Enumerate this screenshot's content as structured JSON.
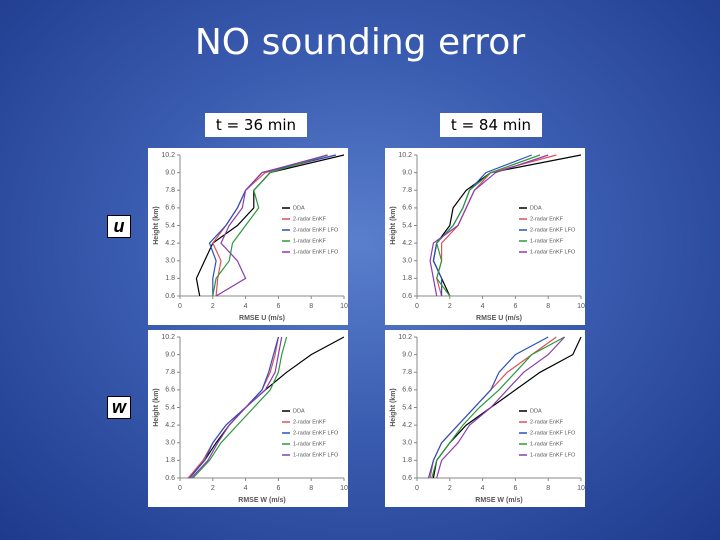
{
  "title": "NO sounding error",
  "column_labels": [
    "t = 36 min",
    "t = 84 min"
  ],
  "row_labels": [
    "u",
    "w"
  ],
  "chart_data": [
    {
      "type": "line",
      "xlabel": "RMSE U (m/s)",
      "ylabel": "Height (km)",
      "legend": "center right",
      "y": [
        0.6,
        1.8,
        3.0,
        4.2,
        5.4,
        6.6,
        7.8,
        9.0,
        10.2
      ],
      "xlim": [
        0,
        10
      ],
      "xticks": [
        0,
        2,
        4,
        6,
        8,
        10
      ],
      "ylim": [
        0.6,
        10.2
      ],
      "yticks": [
        0.6,
        1.8,
        {
          "value": 3,
          "label": "3.0"
        },
        4.2,
        5.4,
        6.6,
        7.8,
        {
          "value": 9,
          "label": "9.0"
        },
        10.2
      ],
      "series": [
        {
          "name": "DDA",
          "color": "#000000",
          "values": [
            1.2,
            1.0,
            1.5,
            2.0,
            3.5,
            4.5,
            4.5,
            5.5,
            10
          ]
        },
        {
          "name": "2-radar EnKF",
          "color": "#e0505a",
          "values": [
            2.2,
            2.3,
            2.5,
            2.0,
            2.8,
            3.5,
            4.0,
            5.2,
            9.5
          ]
        },
        {
          "name": "2-radar EnKF LFO",
          "color": "#2a50c0",
          "values": [
            2.0,
            2.0,
            2.2,
            1.8,
            2.8,
            3.5,
            4.0,
            5.0,
            9.5
          ]
        },
        {
          "name": "1-radar EnKF",
          "color": "#2a9a3a",
          "values": [
            2.0,
            2.2,
            3.0,
            3.2,
            4.0,
            4.8,
            4.5,
            5.5,
            9.0
          ]
        },
        {
          "name": "1-radar EnKF LFO",
          "color": "#8a3ab0",
          "values": [
            2.2,
            4.0,
            3.5,
            2.5,
            3.0,
            3.8,
            4.0,
            5.0,
            9.0
          ]
        }
      ]
    },
    {
      "type": "line",
      "xlabel": "RMSE U (m/s)",
      "ylabel": "Height (km)",
      "legend": "center right",
      "y": [
        0.6,
        1.8,
        3.0,
        4.2,
        5.4,
        6.6,
        7.8,
        9.0,
        10.2
      ],
      "xlim": [
        0,
        10
      ],
      "xticks": [
        0,
        2,
        4,
        6,
        8,
        10
      ],
      "ylim": [
        0.6,
        10.2
      ],
      "yticks": [
        0.6,
        1.8,
        {
          "value": 3,
          "label": "3.0"
        },
        4.2,
        5.4,
        6.6,
        7.8,
        {
          "value": 9,
          "label": "9.0"
        },
        10.2
      ],
      "series": [
        {
          "name": "DDA",
          "color": "#000000",
          "values": [
            2.0,
            1.5,
            1.0,
            1.2,
            2.0,
            2.2,
            3.0,
            4.5,
            10
          ]
        },
        {
          "name": "2-radar EnKF",
          "color": "#e0505a",
          "values": [
            1.5,
            1.2,
            1.5,
            1.5,
            2.5,
            3.0,
            3.5,
            4.5,
            8.5
          ]
        },
        {
          "name": "2-radar EnKF LFO",
          "color": "#2a50c0",
          "values": [
            1.5,
            1.5,
            1.0,
            1.2,
            2.2,
            2.8,
            3.2,
            4.2,
            7.0
          ]
        },
        {
          "name": "1-radar EnKF",
          "color": "#2a9a3a",
          "values": [
            2.0,
            1.2,
            1.5,
            1.2,
            2.2,
            2.8,
            3.2,
            4.5,
            7.5
          ]
        },
        {
          "name": "1-radar EnKF LFO",
          "color": "#8a3ab0",
          "values": [
            1.2,
            1.0,
            0.8,
            1.0,
            2.5,
            3.0,
            3.5,
            4.8,
            8.0
          ]
        }
      ]
    },
    {
      "type": "line",
      "xlabel": "RMSE W (m/s)",
      "ylabel": "Height (km)",
      "legend": "lower right",
      "y": [
        0.6,
        1.8,
        3.0,
        4.2,
        5.4,
        6.6,
        7.8,
        9.0,
        10.2
      ],
      "xlim": [
        0,
        10
      ],
      "xticks": [
        0,
        2,
        4,
        6,
        8,
        10
      ],
      "ylim": [
        0.6,
        10.2
      ],
      "yticks": [
        0.6,
        1.8,
        {
          "value": 3,
          "label": "3.0"
        },
        4.2,
        5.4,
        6.6,
        7.8,
        {
          "value": 9,
          "label": "9.0"
        },
        10.2
      ],
      "series": [
        {
          "name": "DDA",
          "color": "#000000",
          "values": [
            0.5,
            1.5,
            2.2,
            3.0,
            4.0,
            5.2,
            6.5,
            8.0,
            10
          ]
        },
        {
          "name": "2-radar EnKF",
          "color": "#e0505a",
          "values": [
            0.5,
            1.4,
            2.0,
            2.8,
            4.0,
            5.0,
            5.5,
            5.8,
            6.0
          ]
        },
        {
          "name": "2-radar EnKF LFO",
          "color": "#2a50c0",
          "values": [
            0.6,
            1.5,
            2.0,
            2.8,
            4.0,
            5.0,
            5.4,
            5.7,
            6.0
          ]
        },
        {
          "name": "1-radar EnKF",
          "color": "#2a9a3a",
          "values": [
            0.8,
            1.8,
            2.5,
            3.5,
            4.5,
            5.5,
            6.0,
            6.2,
            6.5
          ]
        },
        {
          "name": "1-radar EnKF LFO",
          "color": "#8a3ab0",
          "values": [
            0.7,
            1.7,
            2.3,
            3.0,
            4.0,
            5.2,
            5.8,
            6.0,
            6.2
          ]
        }
      ]
    },
    {
      "type": "line",
      "xlabel": "RMSE W (m/s)",
      "ylabel": "Height (km)",
      "legend": "lower right",
      "y": [
        0.6,
        1.8,
        3.0,
        4.2,
        5.4,
        6.6,
        7.8,
        9.0,
        10.2
      ],
      "xlim": [
        0,
        10
      ],
      "xticks": [
        0,
        2,
        4,
        6,
        8,
        10
      ],
      "ylim": [
        0.6,
        10.2
      ],
      "yticks": [
        0.6,
        1.8,
        {
          "value": 3,
          "label": "3.0"
        },
        4.2,
        5.4,
        6.6,
        7.8,
        {
          "value": 9,
          "label": "9.0"
        },
        10.2
      ],
      "series": [
        {
          "name": "DDA",
          "color": "#000000",
          "values": [
            1.0,
            1.2,
            2.0,
            3.0,
            4.5,
            6.0,
            7.5,
            9.5,
            10
          ]
        },
        {
          "name": "2-radar EnKF",
          "color": "#e0505a",
          "values": [
            0.8,
            1.0,
            1.5,
            2.5,
            3.5,
            4.5,
            5.5,
            7.0,
            8.5
          ]
        },
        {
          "name": "2-radar EnKF LFO",
          "color": "#2a50c0",
          "values": [
            0.7,
            1.0,
            1.5,
            2.5,
            3.5,
            4.5,
            5.0,
            6.0,
            8.0
          ]
        },
        {
          "name": "1-radar EnKF",
          "color": "#2a9a3a",
          "values": [
            0.9,
            1.2,
            2.0,
            2.8,
            3.8,
            5.0,
            6.0,
            7.0,
            9.0
          ]
        },
        {
          "name": "1-radar EnKF LFO",
          "color": "#8a3ab0",
          "values": [
            1.2,
            1.5,
            2.5,
            3.2,
            4.5,
            5.5,
            6.5,
            8.0,
            9.0
          ]
        }
      ]
    }
  ]
}
